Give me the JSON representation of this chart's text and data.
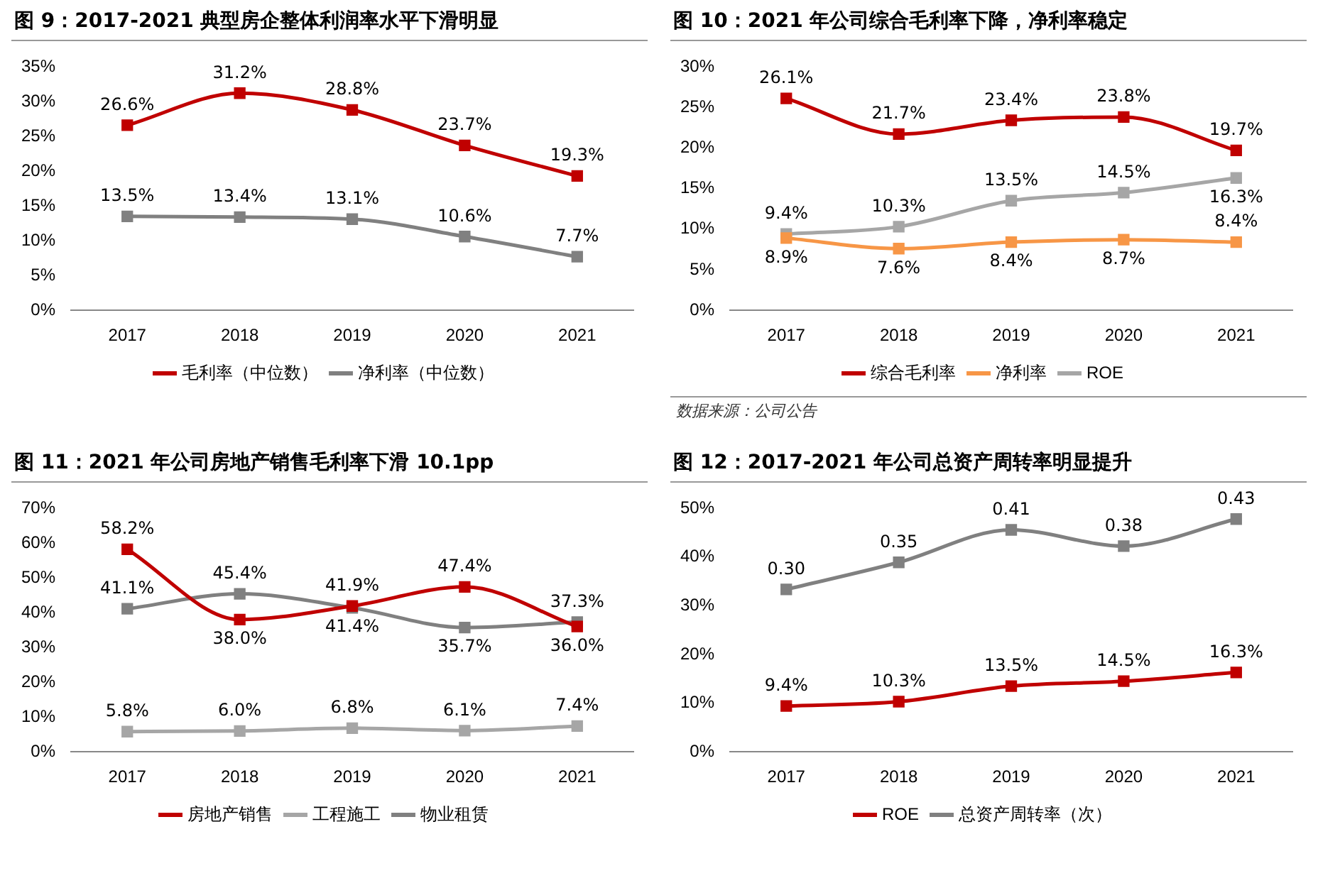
{
  "chart_data": [
    {
      "type": "line",
      "title": "图 9：2017-2021 典型房企整体利润率水平下滑明显",
      "categories": [
        "2017",
        "2018",
        "2019",
        "2020",
        "2021"
      ],
      "marker": "square",
      "line_style": "solid",
      "legend": "bottom",
      "ylim": [
        0,
        35
      ],
      "yticks": [
        {
          "value": 0,
          "label": "0%"
        },
        {
          "value": 5,
          "label": "5%"
        },
        {
          "value": 10,
          "label": "10%"
        },
        {
          "value": 15,
          "label": "15%"
        },
        {
          "value": 20,
          "label": "20%"
        },
        {
          "value": 25,
          "label": "25%"
        },
        {
          "value": 30,
          "label": "30%"
        },
        {
          "value": 35,
          "label": "35%"
        }
      ],
      "series": [
        {
          "name": "毛利率（中位数）",
          "color": "#c00000",
          "values": [
            26.6,
            31.2,
            28.8,
            23.7,
            19.3
          ],
          "value_labels": [
            "26.6%",
            "31.2%",
            "28.8%",
            "23.7%",
            "19.3%"
          ]
        },
        {
          "name": "净利率（中位数）",
          "color": "#808080",
          "values": [
            13.5,
            13.4,
            13.1,
            10.6,
            7.7
          ],
          "value_labels": [
            "13.5%",
            "13.4%",
            "13.1%",
            "10.6%",
            "7.7%"
          ]
        }
      ]
    },
    {
      "type": "line",
      "title": "图 10：2021 年公司综合毛利率下降，净利率稳定",
      "categories": [
        "2017",
        "2018",
        "2019",
        "2020",
        "2021"
      ],
      "marker": "square",
      "line_style": "solid",
      "legend": "bottom",
      "annotations": [
        "数据来源：公司公告"
      ],
      "ylim": [
        0,
        30
      ],
      "yticks": [
        {
          "value": 0,
          "label": "0%"
        },
        {
          "value": 5,
          "label": "5%"
        },
        {
          "value": 10,
          "label": "10%"
        },
        {
          "value": 15,
          "label": "15%"
        },
        {
          "value": 20,
          "label": "20%"
        },
        {
          "value": 25,
          "label": "25%"
        },
        {
          "value": 30,
          "label": "30%"
        }
      ],
      "series": [
        {
          "name": "综合毛利率",
          "color": "#c00000",
          "values": [
            26.1,
            21.7,
            23.4,
            23.8,
            19.7
          ],
          "value_labels": [
            "26.1%",
            "21.7%",
            "23.4%",
            "23.8%",
            "19.7%"
          ]
        },
        {
          "name": "净利率",
          "color": "#f79646",
          "values": [
            8.9,
            7.6,
            8.4,
            8.7,
            8.4
          ],
          "value_labels": [
            "8.9%",
            "7.6%",
            "8.4%",
            "8.7%",
            "8.4%"
          ]
        },
        {
          "name": "ROE",
          "color": "#a6a6a6",
          "values": [
            9.4,
            10.3,
            13.5,
            14.5,
            16.3
          ],
          "value_labels": [
            "9.4%",
            "10.3%",
            "13.5%",
            "14.5%",
            "16.3%"
          ]
        }
      ]
    },
    {
      "type": "line",
      "title": "图 11：2021 年公司房地产销售毛利率下滑 10.1pp",
      "categories": [
        "2017",
        "2018",
        "2019",
        "2020",
        "2021"
      ],
      "marker": "square",
      "line_style": "solid",
      "legend": "bottom",
      "ylim": [
        0,
        70
      ],
      "yticks": [
        {
          "value": 0,
          "label": "0%"
        },
        {
          "value": 10,
          "label": "10%"
        },
        {
          "value": 20,
          "label": "20%"
        },
        {
          "value": 30,
          "label": "30%"
        },
        {
          "value": 40,
          "label": "40%"
        },
        {
          "value": 50,
          "label": "50%"
        },
        {
          "value": 60,
          "label": "60%"
        },
        {
          "value": 70,
          "label": "70%"
        }
      ],
      "series": [
        {
          "name": "房地产销售",
          "color": "#c00000",
          "values": [
            58.2,
            38.0,
            41.9,
            47.4,
            36.0
          ],
          "value_labels": [
            "58.2%",
            "38.0%",
            "41.9%",
            "47.4%",
            "36.0%"
          ]
        },
        {
          "name": "工程施工",
          "color": "#a6a6a6",
          "values": [
            5.8,
            6.0,
            6.8,
            6.1,
            7.4
          ],
          "value_labels": [
            "5.8%",
            "6.0%",
            "6.8%",
            "6.1%",
            "7.4%"
          ]
        },
        {
          "name": "物业租赁",
          "color": "#808080",
          "values": [
            41.1,
            45.4,
            41.4,
            35.7,
            37.3
          ],
          "value_labels": [
            "41.1%",
            "45.4%",
            "41.4%",
            "35.7%",
            "37.3%"
          ]
        }
      ]
    },
    {
      "type": "line",
      "title": "图 12：2017-2021 年公司总资产周转率明显提升",
      "categories": [
        "2017",
        "2018",
        "2019",
        "2020",
        "2021"
      ],
      "marker": "square",
      "line_style": "solid",
      "legend": "bottom",
      "ylim": [
        0,
        50
      ],
      "yticks": [
        {
          "value": 0,
          "label": "0%"
        },
        {
          "value": 10,
          "label": "10%"
        },
        {
          "value": 20,
          "label": "20%"
        },
        {
          "value": 30,
          "label": "30%"
        },
        {
          "value": 40,
          "label": "40%"
        },
        {
          "value": 50,
          "label": "50%"
        }
      ],
      "series": [
        {
          "name": "ROE",
          "color": "#c00000",
          "values": [
            9.4,
            10.3,
            13.5,
            14.5,
            16.3
          ],
          "value_labels": [
            "9.4%",
            "10.3%",
            "13.5%",
            "14.5%",
            "16.3%"
          ]
        },
        {
          "name": "总资产周转率（次）",
          "color": "#808080",
          "axis": "y2",
          "values": [
            0.3,
            0.35,
            0.41,
            0.38,
            0.43
          ],
          "value_labels": [
            "0.30",
            "0.35",
            "0.41",
            "0.38",
            "0.43"
          ]
        }
      ]
    }
  ]
}
